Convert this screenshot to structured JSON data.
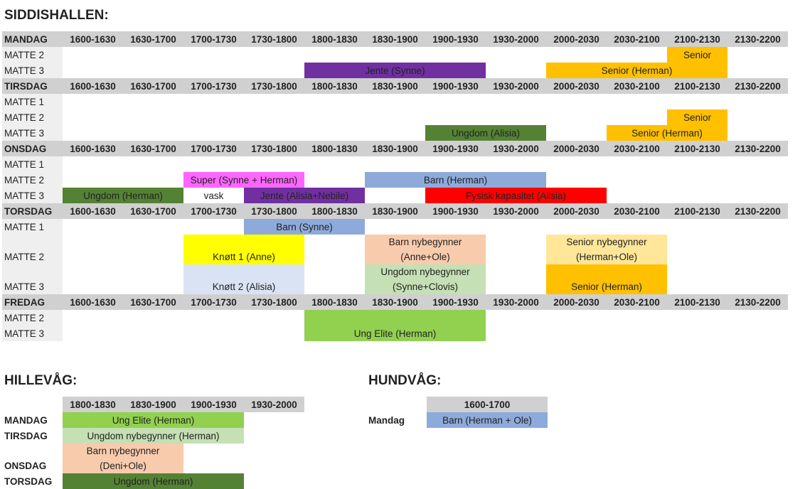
{
  "sections": [
    {
      "title": "SIDDISHALLEN:",
      "slots": [
        "1600-1630",
        "1630-1700",
        "1700-1730",
        "1730-1800",
        "1800-1830",
        "1830-1900",
        "1900-1930",
        "1930-2000",
        "2000-2030",
        "2030-2100",
        "2100-2130",
        "2130-2200"
      ],
      "blocks": [
        {
          "day": "MANDAG",
          "rows": [
            "MATTE 2",
            "MATTE 3"
          ],
          "events": [
            {
              "rows": [
                "MATTE 2"
              ],
              "start": 2100,
              "end": 2130,
              "text": "Senior",
              "color": "#ffc000"
            },
            {
              "rows": [
                "MATTE 3"
              ],
              "start": 1800,
              "end": 1930,
              "text": "Jente (Synne)",
              "color": "#7030a0"
            },
            {
              "rows": [
                "MATTE 3"
              ],
              "start": 2000,
              "end": 2130,
              "text": "Senior (Herman)",
              "color": "#ffc000"
            }
          ]
        },
        {
          "day": "TIRSDAG",
          "rows": [
            "MATTE 1",
            "MATTE 2",
            "MATTE 3"
          ],
          "events": [
            {
              "rows": [
                "MATTE 2"
              ],
              "start": 2100,
              "end": 2130,
              "text": "Senior",
              "color": "#ffc000"
            },
            {
              "rows": [
                "MATTE 3"
              ],
              "start": 1900,
              "end": 2000,
              "text": "Ungdom (Alisia)",
              "color": "#548235"
            },
            {
              "rows": [
                "MATTE 3"
              ],
              "start": 2030,
              "end": 2130,
              "text": "Senior (Herman)",
              "color": "#ffc000"
            }
          ]
        },
        {
          "day": "ONSDAG",
          "rows": [
            "MATTE 1",
            "MATTE 2",
            "MATTE 3"
          ],
          "events": [
            {
              "rows": [
                "MATTE 2"
              ],
              "start": 1700,
              "end": 1800,
              "text": "Super (Synne + Herman)",
              "color": "#ff66ff"
            },
            {
              "rows": [
                "MATTE 2"
              ],
              "start": 1830,
              "end": 2000,
              "text": "Barn (Herman)",
              "color": "#8eaadb"
            },
            {
              "rows": [
                "MATTE 3"
              ],
              "start": 1600,
              "end": 1700,
              "text": "Ungdom (Herman)",
              "color": "#548235"
            },
            {
              "rows": [
                "MATTE 3"
              ],
              "start": 1700,
              "end": 1730,
              "text": "vask",
              "color": "#ffffff"
            },
            {
              "rows": [
                "MATTE 3"
              ],
              "start": 1730,
              "end": 1830,
              "text": "Jente (Alisia+Nebile)",
              "color": "#7030a0"
            },
            {
              "rows": [
                "MATTE 3"
              ],
              "start": 1900,
              "end": 2030,
              "text": "Fysisk kapasitet (Alisia)",
              "color": "#ff0000"
            }
          ]
        },
        {
          "day": "TORSDAG",
          "rows": [
            "MATTE 1",
            "MATTE 2",
            "MATTE 3"
          ],
          "events": [
            {
              "rows": [
                "MATTE 1"
              ],
              "start": 1730,
              "end": 1830,
              "text": "Barn (Synne)",
              "color": "#8eaadb"
            },
            {
              "rows": [
                "MATTE 2"
              ],
              "start": 1700,
              "end": 1800,
              "text": "Knøtt 1 (Anne)",
              "color": "#ffff00"
            },
            {
              "rows": [
                "MATTE 2"
              ],
              "start": 1830,
              "end": 1930,
              "text": "Barn nybegynner (Anne+Ole)",
              "color": "#f8cbad"
            },
            {
              "rows": [
                "MATTE 2"
              ],
              "start": 2000,
              "end": 2100,
              "text": "Senior nybegynner (Herman+Ole)",
              "color": "#ffe699"
            },
            {
              "rows": [
                "MATTE 3"
              ],
              "start": 1700,
              "end": 1800,
              "text": "Knøtt 2 (Alisia)",
              "color": "#dae3f3"
            },
            {
              "rows": [
                "MATTE 3"
              ],
              "start": 1830,
              "end": 1930,
              "text": "Ungdom nybegynner (Synne+Clovis)",
              "color": "#c5e0b4"
            },
            {
              "rows": [
                "MATTE 3"
              ],
              "start": 2000,
              "end": 2100,
              "text": "Senior (Herman)",
              "color": "#ffc000"
            }
          ]
        },
        {
          "day": "FREDAG",
          "rows": [
            "MATTE 2",
            "MATTE 3"
          ],
          "events": [
            {
              "rows": [
                "MATTE 2",
                "MATTE 3"
              ],
              "start": 1800,
              "end": 1930,
              "text": "Ung Elite (Herman)",
              "color": "#92d050"
            }
          ]
        }
      ]
    },
    {
      "title": "HILLEVÅG:",
      "slots": [
        "1800-1830",
        "1830-1900",
        "1900-1930",
        "1930-2000"
      ],
      "blocks": [
        {
          "rows": [
            "MANDAG",
            "TIRSDAG",
            "ONSDAG",
            "TORSDAG"
          ],
          "events": [
            {
              "rows": [
                "MANDAG"
              ],
              "start": 1800,
              "end": 1930,
              "text": "Ung Elite (Herman)",
              "color": "#92d050"
            },
            {
              "rows": [
                "TIRSDAG"
              ],
              "start": 1800,
              "end": 1930,
              "text": "Ungdom nybegynner (Herman)",
              "color": "#c5e0b4"
            },
            {
              "rows": [
                "ONSDAG"
              ],
              "start": 1800,
              "end": 1900,
              "text": "Barn nybegynner (Deni+Ole)",
              "color": "#f8cbad"
            },
            {
              "rows": [
                "TORSDAG"
              ],
              "start": 1800,
              "end": 1930,
              "text": "Ungdom (Herman)",
              "color": "#548235"
            }
          ]
        }
      ]
    },
    {
      "title": "HUNDVÅG:",
      "slots": [
        "1600-1700"
      ],
      "blocks": [
        {
          "rows": [
            "Mandag"
          ],
          "events": [
            {
              "rows": [
                "Mandag"
              ],
              "start": 1600,
              "end": 1700,
              "text": "Barn (Herman + Ole)",
              "color": "#8eaadb"
            }
          ]
        }
      ]
    }
  ]
}
